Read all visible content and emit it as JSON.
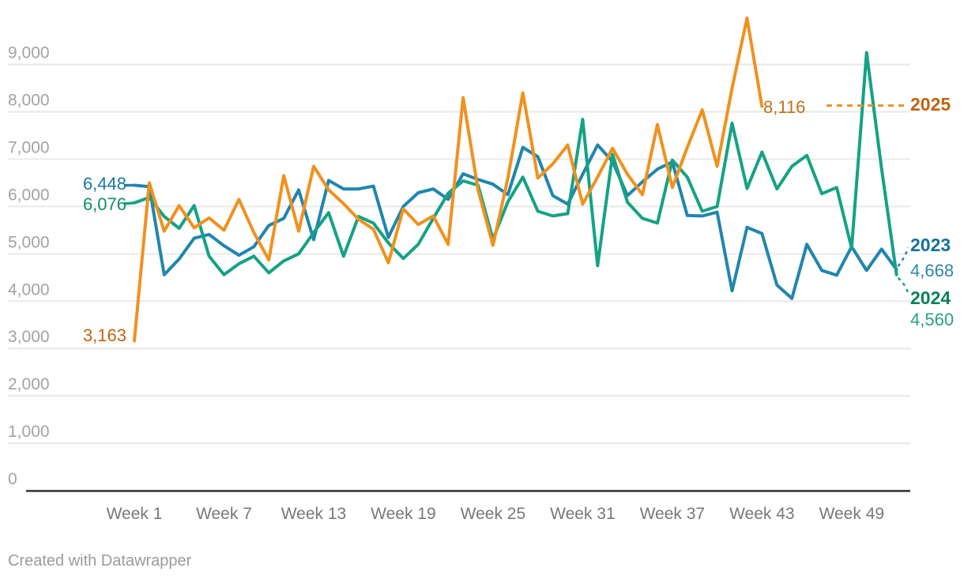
{
  "chart_data": {
    "type": "line",
    "title": "",
    "xlabel": "",
    "ylabel": "",
    "grid": "horizontal",
    "legend_position": "direct-labels",
    "x_axis": {
      "unit": "week",
      "ticks": [
        {
          "week": 1,
          "label": "Week 1"
        },
        {
          "week": 7,
          "label": "Week 7"
        },
        {
          "week": 13,
          "label": "Week 13"
        },
        {
          "week": 19,
          "label": "Week 19"
        },
        {
          "week": 25,
          "label": "Week 25"
        },
        {
          "week": 31,
          "label": "Week 31"
        },
        {
          "week": 37,
          "label": "Week 37"
        },
        {
          "week": 43,
          "label": "Week 43"
        },
        {
          "week": 49,
          "label": "Week 49"
        }
      ]
    },
    "y_axis": {
      "min": 0,
      "max": 9000,
      "ticks": [
        {
          "value": 0,
          "label": "0"
        },
        {
          "value": 1000,
          "label": "1,000"
        },
        {
          "value": 2000,
          "label": "2,000"
        },
        {
          "value": 3000,
          "label": "3,000"
        },
        {
          "value": 4000,
          "label": "4,000"
        },
        {
          "value": 5000,
          "label": "5,000"
        },
        {
          "value": 6000,
          "label": "6,000"
        },
        {
          "value": 7000,
          "label": "7,000"
        },
        {
          "value": 8000,
          "label": "8,000"
        },
        {
          "value": 9000,
          "label": "9,000"
        }
      ]
    },
    "series": [
      {
        "name": "2023",
        "color": "#2086ae",
        "start_label": "6,448",
        "end_label": "4,668",
        "first_week": 1,
        "values": [
          6448,
          6420,
          4560,
          4890,
          5330,
          5410,
          5170,
          4970,
          5150,
          5600,
          5750,
          6350,
          5300,
          6550,
          6370,
          6370,
          6430,
          5350,
          6000,
          6290,
          6370,
          6150,
          6690,
          6570,
          6470,
          6250,
          7250,
          7050,
          6230,
          6050,
          6680,
          7300,
          6950,
          6230,
          6520,
          6790,
          6940,
          5810,
          5800,
          5880,
          4220,
          5560,
          5430,
          4340,
          4060,
          5200,
          4650,
          4550,
          5150,
          4650,
          5100,
          4668
        ]
      },
      {
        "name": "2024",
        "color": "#15a284",
        "start_label": "6,076",
        "end_label": "4,560",
        "first_week": 1,
        "values": [
          6076,
          6190,
          5790,
          5540,
          6020,
          4950,
          4560,
          4790,
          4950,
          4600,
          4850,
          5000,
          5450,
          5870,
          4950,
          5790,
          5650,
          5230,
          4900,
          5200,
          5750,
          6280,
          6540,
          6450,
          5310,
          6100,
          6620,
          5900,
          5800,
          5850,
          7840,
          4750,
          7100,
          6090,
          5750,
          5650,
          6980,
          6620,
          5900,
          6000,
          7760,
          6380,
          7150,
          6370,
          6850,
          7080,
          6270,
          6400,
          5120,
          9250,
          6800,
          4560
        ]
      },
      {
        "name": "2025",
        "color": "#f0911e",
        "start_label": "3,163",
        "end_label": "8,116",
        "first_week": 1,
        "values": [
          3163,
          6500,
          5480,
          6020,
          5550,
          5760,
          5500,
          6150,
          5450,
          4870,
          6650,
          5480,
          6850,
          6350,
          6060,
          5730,
          5520,
          4810,
          5950,
          5620,
          5800,
          5200,
          8300,
          6350,
          5180,
          6600,
          8400,
          6600,
          6900,
          7300,
          6050,
          6620,
          7230,
          6680,
          6250,
          7730,
          6400,
          7250,
          8040,
          6850,
          8500,
          9980,
          8116
        ]
      }
    ],
    "style": {
      "gridline_color": "#e9e9e9",
      "axis_line_color": "#303030",
      "y_tick_color": "#a3a3a3",
      "x_tick_color": "#787878"
    }
  },
  "footer": {
    "credit": "Created with Datawrapper"
  }
}
